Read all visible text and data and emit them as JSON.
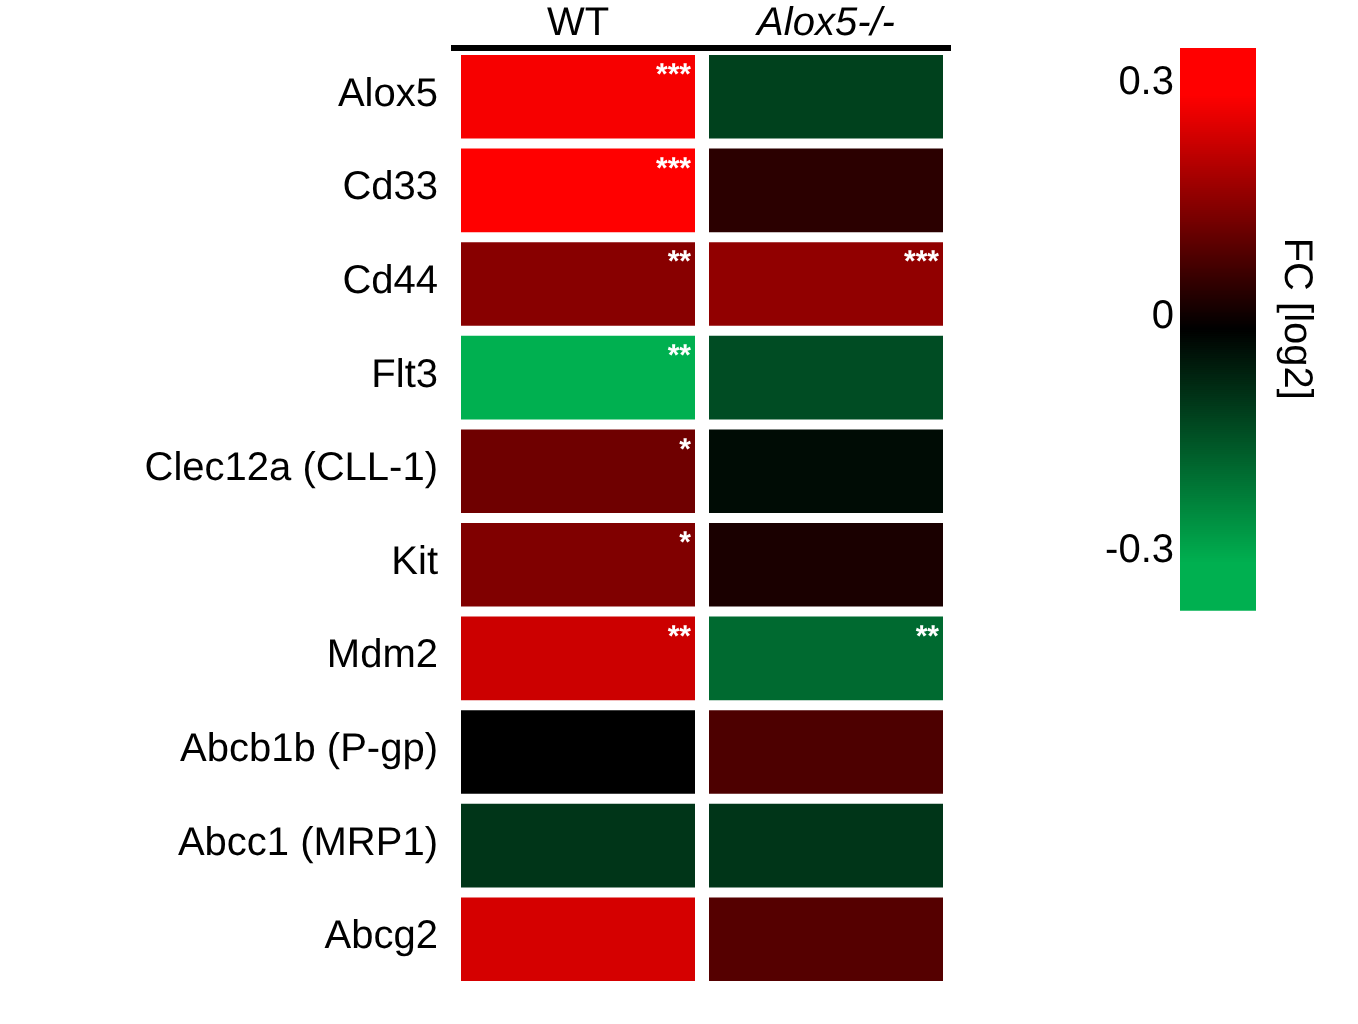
{
  "chart_data": {
    "type": "heatmap",
    "categories": [
      "WT",
      "Alox5-/-"
    ],
    "y_categories": [
      "Alox5",
      "Cd33",
      "Cd44",
      "Flt3",
      "Clec12a (CLL-1)",
      "Kit",
      "Mdm2",
      "Abcb1b (P-gp)",
      "Abcc1 (MRP1)",
      "Abcg2"
    ],
    "cells": [
      [
        0.29,
        -0.11
      ],
      [
        0.3,
        0.05
      ],
      [
        0.16,
        0.17
      ],
      [
        -0.3,
        -0.13
      ],
      [
        0.13,
        -0.02
      ],
      [
        0.15,
        0.03
      ],
      [
        0.24,
        -0.18
      ],
      [
        0,
        0.09
      ],
      [
        -0.09,
        -0.09
      ],
      [
        0.25,
        0.1
      ]
    ],
    "cell_labels": [
      [
        "***",
        null
      ],
      [
        "***",
        null
      ],
      [
        "**",
        "***"
      ],
      [
        "**",
        null
      ],
      [
        "*",
        null
      ],
      [
        "*",
        null
      ],
      [
        "**",
        "**"
      ],
      [
        null,
        null
      ],
      [
        null,
        null
      ],
      [
        null,
        null
      ]
    ],
    "clabel": "FC [log2]",
    "clim": [
      -0.36,
      0.36
    ],
    "cticks": [
      -0.3,
      0,
      0.3
    ]
  }
}
